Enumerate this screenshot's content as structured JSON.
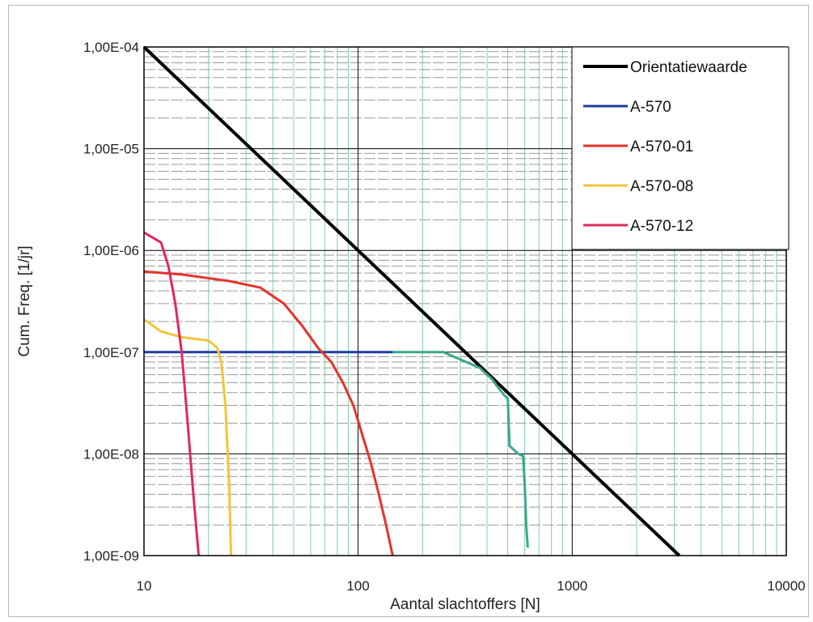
{
  "chart_data": {
    "type": "line",
    "xlabel": "Aantal slachtoffers [N]",
    "ylabel": "Cum. Freq. [1/jr]",
    "x_scale": "log",
    "y_scale": "log",
    "xlim": [
      10,
      10000
    ],
    "ylim": [
      1e-09,
      0.0001
    ],
    "grid": true,
    "legend_position": "top-right",
    "x_ticks": [
      {
        "value": 10,
        "label": "10"
      },
      {
        "value": 100,
        "label": "100"
      },
      {
        "value": 1000,
        "label": "1000"
      },
      {
        "value": 10000,
        "label": "10000"
      }
    ],
    "y_ticks": [
      {
        "value": 0.0001,
        "label": "1,00E-04"
      },
      {
        "value": 1e-05,
        "label": "1,00E-05"
      },
      {
        "value": 1e-06,
        "label": "1,00E-06"
      },
      {
        "value": 1e-07,
        "label": "1,00E-07"
      },
      {
        "value": 1e-08,
        "label": "1,00E-08"
      },
      {
        "value": 1e-09,
        "label": "1,00E-09"
      }
    ],
    "series": [
      {
        "name": "Orientatiewaarde",
        "color": "#000000",
        "points": [
          [
            10,
            0.0001
          ],
          [
            3162,
            1e-09
          ]
        ]
      },
      {
        "name": "A-570",
        "color": "#1f3f9a",
        "points": [
          [
            10,
            1e-07
          ],
          [
            50,
            1e-07
          ],
          [
            100,
            1e-07
          ],
          [
            145,
            1e-07
          ]
        ]
      },
      {
        "name": "A-570-01",
        "color": "#e5332a",
        "points": [
          [
            10,
            6.2e-07
          ],
          [
            15,
            5.8e-07
          ],
          [
            25,
            5e-07
          ],
          [
            35,
            4.3e-07
          ],
          [
            45,
            3e-07
          ],
          [
            55,
            1.8e-07
          ],
          [
            65,
            1.1e-07
          ],
          [
            75,
            8e-08
          ],
          [
            85,
            5e-08
          ],
          [
            95,
            3e-08
          ],
          [
            105,
            1.5e-08
          ],
          [
            115,
            8e-09
          ],
          [
            125,
            4e-09
          ],
          [
            135,
            2e-09
          ],
          [
            145,
            1e-09
          ]
        ]
      },
      {
        "name": "A-570-08",
        "color": "#f2c43c",
        "points": [
          [
            10,
            2.1e-07
          ],
          [
            12,
            1.6e-07
          ],
          [
            15,
            1.4e-07
          ],
          [
            20,
            1.3e-07
          ],
          [
            22,
            1.1e-07
          ],
          [
            23,
            8e-08
          ],
          [
            24,
            3e-08
          ],
          [
            25,
            5e-09
          ],
          [
            25.5,
            1e-09
          ]
        ]
      },
      {
        "name": "A-570-12",
        "color": "#e0295e",
        "points": [
          [
            10,
            1.5e-06
          ],
          [
            12,
            1.2e-06
          ],
          [
            13,
            7e-07
          ],
          [
            14,
            3e-07
          ],
          [
            15,
            1e-07
          ],
          [
            16,
            2e-08
          ],
          [
            17,
            4e-09
          ],
          [
            18,
            1e-09
          ]
        ]
      },
      {
        "name": "",
        "color": "#3aa88c",
        "points": [
          [
            145,
            1e-07
          ],
          [
            250,
            1e-07
          ],
          [
            300,
            8.5e-08
          ],
          [
            370,
            7e-08
          ],
          [
            400,
            6e-08
          ],
          [
            420,
            5.5e-08
          ],
          [
            450,
            4.5e-08
          ],
          [
            480,
            3.8e-08
          ],
          [
            500,
            3.5e-08
          ],
          [
            505,
            2e-08
          ],
          [
            510,
            1.2e-08
          ],
          [
            560,
            1e-08
          ],
          [
            590,
            9.5e-09
          ],
          [
            600,
            5e-09
          ],
          [
            610,
            2e-09
          ],
          [
            620,
            1.2e-09
          ]
        ]
      }
    ]
  }
}
